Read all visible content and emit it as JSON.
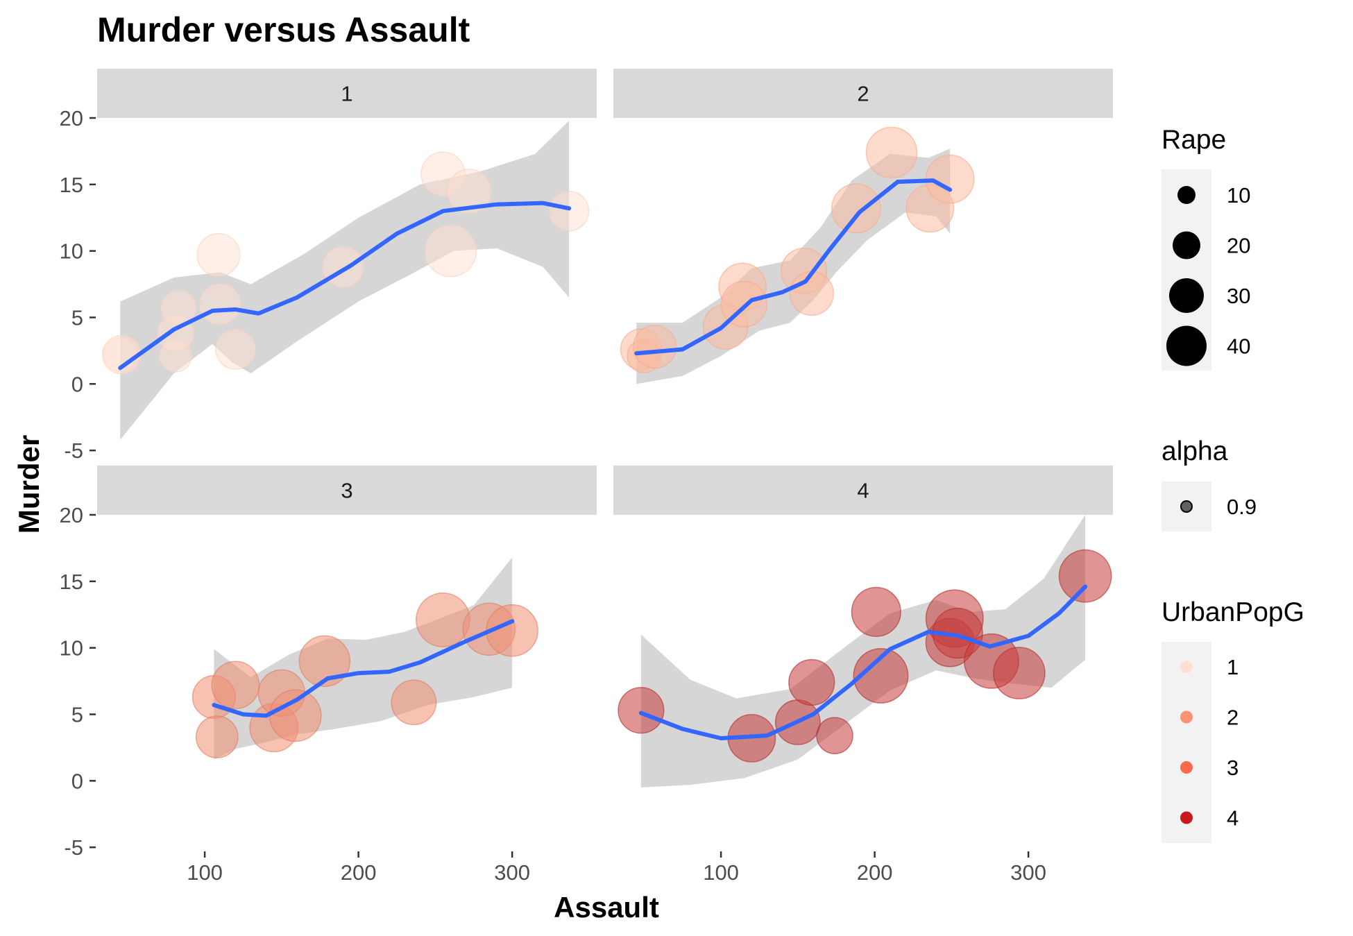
{
  "chart_data": {
    "type": "scatter",
    "title": "Murder versus Assault",
    "xlabel": "Assault",
    "ylabel": "Murder",
    "xlim": [
      30,
      355
    ],
    "ylim": [
      -5.2,
      20
    ],
    "x_ticks": [
      100,
      200,
      300
    ],
    "y_ticks": [
      -5,
      0,
      5,
      10,
      15,
      20
    ],
    "facets": [
      {
        "label": "1",
        "points": [
          {
            "x": 45,
            "y": 2.2,
            "rape": 8
          },
          {
            "x": 46,
            "y": 2.2,
            "rape": 12
          },
          {
            "x": 81,
            "y": 2.1,
            "rape": 7
          },
          {
            "x": 81,
            "y": 3.8,
            "rape": 10
          },
          {
            "x": 83,
            "y": 5.7,
            "rape": 9
          },
          {
            "x": 109,
            "y": 9.7,
            "rape": 16
          },
          {
            "x": 110,
            "y": 6.0,
            "rape": 14
          },
          {
            "x": 120,
            "y": 2.6,
            "rape": 13
          },
          {
            "x": 190,
            "y": 8.8,
            "rape": 14
          },
          {
            "x": 255,
            "y": 15.8,
            "rape": 17
          },
          {
            "x": 260,
            "y": 10.0,
            "rape": 26
          },
          {
            "x": 272,
            "y": 14.5,
            "rape": 17
          },
          {
            "x": 337,
            "y": 13.0,
            "rape": 13
          }
        ],
        "smooth": [
          [
            45,
            1.2
          ],
          [
            80,
            4.1
          ],
          [
            105,
            5.5
          ],
          [
            120,
            5.6
          ],
          [
            135,
            5.3
          ],
          [
            160,
            6.5
          ],
          [
            195,
            8.9
          ],
          [
            225,
            11.3
          ],
          [
            255,
            13.0
          ],
          [
            290,
            13.5
          ],
          [
            320,
            13.6
          ],
          [
            337,
            13.2
          ]
        ],
        "band_upper": [
          [
            45,
            6.2
          ],
          [
            80,
            8.0
          ],
          [
            110,
            8.4
          ],
          [
            130,
            7.5
          ],
          [
            165,
            9.8
          ],
          [
            200,
            12.5
          ],
          [
            240,
            15.0
          ],
          [
            280,
            16.0
          ],
          [
            315,
            17.3
          ],
          [
            337,
            19.8
          ]
        ],
        "band_lower": [
          [
            45,
            -4.2
          ],
          [
            80,
            0.8
          ],
          [
            105,
            3.0
          ],
          [
            118,
            1.6
          ],
          [
            130,
            0.8
          ],
          [
            160,
            3.2
          ],
          [
            200,
            6.2
          ],
          [
            235,
            8.3
          ],
          [
            262,
            10.0
          ],
          [
            290,
            10.2
          ],
          [
            320,
            8.8
          ],
          [
            337,
            6.5
          ]
        ]
      },
      {
        "label": "2",
        "points": [
          {
            "x": 48,
            "y": 2.6,
            "rape": 14
          },
          {
            "x": 50,
            "y": 2.1,
            "rape": 8
          },
          {
            "x": 57,
            "y": 2.8,
            "rape": 16
          },
          {
            "x": 103,
            "y": 4.3,
            "rape": 18
          },
          {
            "x": 114,
            "y": 7.3,
            "rape": 21
          },
          {
            "x": 115,
            "y": 6.0,
            "rape": 19
          },
          {
            "x": 154,
            "y": 8.5,
            "rape": 19
          },
          {
            "x": 159,
            "y": 6.8,
            "rape": 17
          },
          {
            "x": 188,
            "y": 13.2,
            "rape": 23
          },
          {
            "x": 211,
            "y": 17.4,
            "rape": 25
          },
          {
            "x": 236,
            "y": 13.2,
            "rape": 21
          },
          {
            "x": 249,
            "y": 15.4,
            "rape": 22
          }
        ],
        "smooth": [
          [
            45,
            2.3
          ],
          [
            75,
            2.6
          ],
          [
            100,
            4.2
          ],
          [
            120,
            6.3
          ],
          [
            140,
            6.9
          ],
          [
            155,
            7.7
          ],
          [
            170,
            10.0
          ],
          [
            190,
            12.9
          ],
          [
            215,
            15.2
          ],
          [
            238,
            15.3
          ],
          [
            249,
            14.6
          ]
        ],
        "band_upper": [
          [
            45,
            4.6
          ],
          [
            75,
            4.6
          ],
          [
            100,
            6.5
          ],
          [
            120,
            8.7
          ],
          [
            145,
            9.3
          ],
          [
            165,
            11.8
          ],
          [
            185,
            15.3
          ],
          [
            210,
            17.3
          ],
          [
            235,
            17.0
          ],
          [
            249,
            17.7
          ]
        ],
        "band_lower": [
          [
            45,
            0.0
          ],
          [
            75,
            0.6
          ],
          [
            100,
            2.1
          ],
          [
            125,
            4.0
          ],
          [
            145,
            4.6
          ],
          [
            160,
            6.3
          ],
          [
            175,
            8.4
          ],
          [
            195,
            10.8
          ],
          [
            220,
            12.9
          ],
          [
            240,
            12.6
          ],
          [
            249,
            11.3
          ]
        ]
      },
      {
        "label": "3",
        "points": [
          {
            "x": 106,
            "y": 6.3,
            "rape": 16
          },
          {
            "x": 108,
            "y": 3.3,
            "rape": 15
          },
          {
            "x": 120,
            "y": 7.2,
            "rape": 21
          },
          {
            "x": 145,
            "y": 4.0,
            "rape": 22
          },
          {
            "x": 150,
            "y": 6.6,
            "rape": 20
          },
          {
            "x": 159,
            "y": 4.9,
            "rape": 26
          },
          {
            "x": 178,
            "y": 9.0,
            "rape": 25
          },
          {
            "x": 236,
            "y": 5.9,
            "rape": 18
          },
          {
            "x": 255,
            "y": 12.1,
            "rape": 29
          },
          {
            "x": 285,
            "y": 11.4,
            "rape": 27
          },
          {
            "x": 300,
            "y": 11.3,
            "rape": 26
          }
        ],
        "smooth": [
          [
            106,
            5.7
          ],
          [
            125,
            5.0
          ],
          [
            140,
            4.9
          ],
          [
            160,
            6.1
          ],
          [
            180,
            7.7
          ],
          [
            200,
            8.1
          ],
          [
            220,
            8.2
          ],
          [
            240,
            8.9
          ],
          [
            270,
            10.5
          ],
          [
            300,
            12.0
          ]
        ],
        "band_upper": [
          [
            106,
            9.9
          ],
          [
            130,
            7.8
          ],
          [
            155,
            9.5
          ],
          [
            180,
            10.7
          ],
          [
            205,
            10.6
          ],
          [
            230,
            11.2
          ],
          [
            255,
            12.3
          ],
          [
            275,
            13.2
          ],
          [
            300,
            16.8
          ]
        ],
        "band_lower": [
          [
            106,
            1.6
          ],
          [
            120,
            2.4
          ],
          [
            140,
            2.9
          ],
          [
            160,
            3.5
          ],
          [
            185,
            3.9
          ],
          [
            215,
            4.5
          ],
          [
            245,
            5.7
          ],
          [
            275,
            6.3
          ],
          [
            300,
            7.0
          ]
        ]
      },
      {
        "label": "4",
        "points": [
          {
            "x": 48,
            "y": 5.3,
            "rape": 19
          },
          {
            "x": 120,
            "y": 3.2,
            "rape": 21
          },
          {
            "x": 150,
            "y": 4.4,
            "rape": 18
          },
          {
            "x": 159,
            "y": 7.4,
            "rape": 19
          },
          {
            "x": 174,
            "y": 3.4,
            "rape": 10
          },
          {
            "x": 201,
            "y": 12.7,
            "rape": 23
          },
          {
            "x": 204,
            "y": 7.9,
            "rape": 30
          },
          {
            "x": 249,
            "y": 10.4,
            "rape": 22
          },
          {
            "x": 252,
            "y": 12.2,
            "rape": 34
          },
          {
            "x": 254,
            "y": 11.1,
            "rape": 24
          },
          {
            "x": 276,
            "y": 9.0,
            "rape": 30
          },
          {
            "x": 294,
            "y": 8.1,
            "rape": 26
          },
          {
            "x": 337,
            "y": 15.4,
            "rape": 27
          }
        ],
        "smooth": [
          [
            48,
            5.1
          ],
          [
            75,
            3.9
          ],
          [
            100,
            3.2
          ],
          [
            130,
            3.4
          ],
          [
            160,
            5.0
          ],
          [
            185,
            7.3
          ],
          [
            210,
            9.9
          ],
          [
            235,
            11.2
          ],
          [
            255,
            10.9
          ],
          [
            275,
            10.1
          ],
          [
            300,
            10.9
          ],
          [
            320,
            12.6
          ],
          [
            337,
            14.6
          ]
        ],
        "band_upper": [
          [
            48,
            11.0
          ],
          [
            80,
            7.6
          ],
          [
            110,
            6.2
          ],
          [
            145,
            6.9
          ],
          [
            180,
            10.0
          ],
          [
            210,
            12.6
          ],
          [
            240,
            13.6
          ],
          [
            262,
            12.7
          ],
          [
            285,
            12.9
          ],
          [
            310,
            15.2
          ],
          [
            337,
            20.0
          ]
        ],
        "band_lower": [
          [
            48,
            -0.5
          ],
          [
            80,
            -0.3
          ],
          [
            115,
            0.2
          ],
          [
            150,
            1.6
          ],
          [
            180,
            4.2
          ],
          [
            210,
            6.8
          ],
          [
            240,
            8.3
          ],
          [
            265,
            7.7
          ],
          [
            290,
            7.3
          ],
          [
            315,
            7.0
          ],
          [
            337,
            9.1
          ]
        ]
      }
    ],
    "legend": {
      "rape": {
        "title": "Rape",
        "values": [
          10,
          20,
          30,
          40
        ]
      },
      "alpha": {
        "title": "alpha",
        "values": [
          0.9
        ]
      },
      "urbanpop": {
        "title": "UrbanPopG",
        "values": [
          "1",
          "2",
          "3",
          "4"
        ]
      }
    }
  },
  "colors": {
    "urbanpop": [
      "#fee0d2",
      "#fc9272",
      "#fb6a4a",
      "#cb181d"
    ],
    "smooth_line": "#3366ff",
    "band": "#999999",
    "strip_background": "#d9d9d9",
    "legend_key_background": "#f2f2f2"
  }
}
